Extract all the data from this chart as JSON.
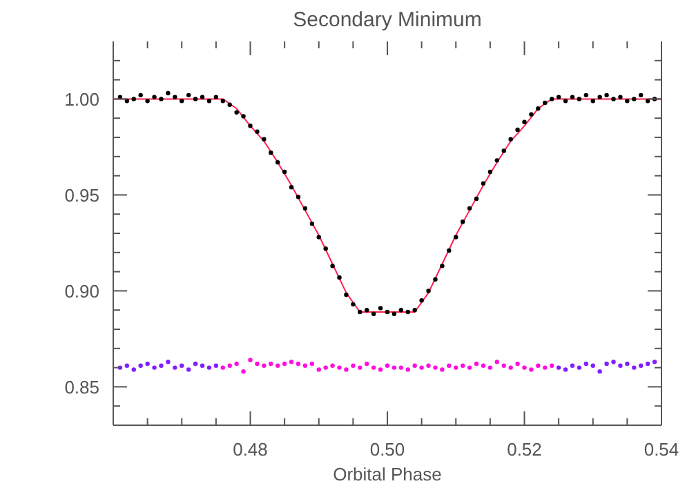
{
  "chart_data": {
    "type": "scatter",
    "title": "Secondary Minimum",
    "xlabel": "Orbital Phase",
    "marker": "circle",
    "xlim": [
      0.46,
      0.54
    ],
    "xticks": [
      {
        "value": 0.465,
        "label": null
      },
      {
        "value": 0.47,
        "label": null
      },
      {
        "value": 0.475,
        "label": null
      },
      {
        "value": 0.48,
        "label": "0.48"
      },
      {
        "value": 0.485,
        "label": null
      },
      {
        "value": 0.49,
        "label": null
      },
      {
        "value": 0.495,
        "label": null
      },
      {
        "value": 0.5,
        "label": "0.50"
      },
      {
        "value": 0.505,
        "label": null
      },
      {
        "value": 0.51,
        "label": null
      },
      {
        "value": 0.515,
        "label": null
      },
      {
        "value": 0.52,
        "label": "0.52"
      },
      {
        "value": 0.525,
        "label": null
      },
      {
        "value": 0.53,
        "label": null
      },
      {
        "value": 0.535,
        "label": null
      },
      {
        "value": 0.54,
        "label": "0.54"
      }
    ],
    "ylim": [
      0.83,
      1.03
    ],
    "yticks": [
      {
        "value": 0.84,
        "label": null
      },
      {
        "value": 0.85,
        "label": "0.85"
      },
      {
        "value": 0.86,
        "label": null
      },
      {
        "value": 0.87,
        "label": null
      },
      {
        "value": 0.88,
        "label": null
      },
      {
        "value": 0.89,
        "label": null
      },
      {
        "value": 0.9,
        "label": "0.90"
      },
      {
        "value": 0.91,
        "label": null
      },
      {
        "value": 0.92,
        "label": null
      },
      {
        "value": 0.93,
        "label": null
      },
      {
        "value": 0.94,
        "label": null
      },
      {
        "value": 0.95,
        "label": "0.95"
      },
      {
        "value": 0.96,
        "label": null
      },
      {
        "value": 0.97,
        "label": null
      },
      {
        "value": 0.98,
        "label": null
      },
      {
        "value": 0.99,
        "label": null
      },
      {
        "value": 1,
        "label": "1.00"
      },
      {
        "value": 1.01,
        "label": null
      },
      {
        "value": 1.02,
        "label": null
      }
    ],
    "series": [
      {
        "color": "#000000",
        "x": [
          0.461,
          0.462,
          0.463,
          0.464,
          0.465,
          0.466,
          0.467,
          0.468,
          0.469,
          0.47,
          0.471,
          0.472,
          0.473,
          0.474,
          0.475,
          0.476,
          0.477,
          0.478,
          0.479,
          0.48,
          0.481,
          0.482,
          0.483,
          0.484,
          0.485,
          0.486,
          0.487,
          0.488,
          0.489,
          0.49,
          0.491,
          0.492,
          0.493,
          0.494,
          0.495,
          0.496,
          0.497,
          0.498,
          0.499,
          0.5,
          0.501,
          0.502,
          0.503,
          0.504,
          0.505,
          0.506,
          0.507,
          0.508,
          0.509,
          0.51,
          0.511,
          0.512,
          0.513,
          0.514,
          0.515,
          0.516,
          0.517,
          0.518,
          0.519,
          0.52,
          0.521,
          0.522,
          0.523,
          0.524,
          0.525,
          0.526,
          0.527,
          0.528,
          0.529,
          0.53,
          0.531,
          0.532,
          0.533,
          0.534,
          0.535,
          0.536,
          0.537,
          0.538,
          0.539
        ],
        "values": [
          1.001,
          0.999,
          1.0,
          1.002,
          0.999,
          1.001,
          1.0,
          1.003,
          1.001,
          0.999,
          1.002,
          1.0,
          1.001,
          0.999,
          1.001,
          0.999,
          0.997,
          0.993,
          0.991,
          0.986,
          0.983,
          0.979,
          0.972,
          0.967,
          0.962,
          0.954,
          0.949,
          0.943,
          0.935,
          0.928,
          0.922,
          0.913,
          0.907,
          0.898,
          0.893,
          0.889,
          0.89,
          0.888,
          0.891,
          0.889,
          0.888,
          0.89,
          0.889,
          0.89,
          0.895,
          0.9,
          0.906,
          0.913,
          0.921,
          0.928,
          0.936,
          0.943,
          0.948,
          0.956,
          0.962,
          0.968,
          0.973,
          0.979,
          0.984,
          0.988,
          0.992,
          0.995,
          0.998,
          1.0,
          1.001,
          0.999,
          1.001,
          1.0,
          1.002,
          0.999,
          1.001,
          1.002,
          1.0,
          1.001,
          0.999,
          1.0,
          1.002,
          0.999,
          1.0
        ]
      },
      {
        "type": "line",
        "marker": "none",
        "color": "#ff2050",
        "x": [
          0.46,
          0.476,
          0.478,
          0.48,
          0.482,
          0.484,
          0.486,
          0.488,
          0.49,
          0.492,
          0.494,
          0.496,
          0.504,
          0.506,
          0.508,
          0.51,
          0.512,
          0.514,
          0.516,
          0.518,
          0.52,
          0.522,
          0.524,
          0.54
        ],
        "values": [
          1.0,
          1.0,
          0.995,
          0.986,
          0.978,
          0.967,
          0.955,
          0.942,
          0.929,
          0.914,
          0.899,
          0.889,
          0.889,
          0.899,
          0.914,
          0.929,
          0.942,
          0.955,
          0.967,
          0.978,
          0.986,
          0.995,
          1.0,
          1.0
        ]
      },
      {
        "color": "#8020ff",
        "x": [
          0.461,
          0.462,
          0.463,
          0.464,
          0.465,
          0.466,
          0.467,
          0.468,
          0.469,
          0.47,
          0.471,
          0.472,
          0.473,
          0.474,
          0.475,
          0.525,
          0.526,
          0.527,
          0.528,
          0.529,
          0.53,
          0.531,
          0.532,
          0.533,
          0.534,
          0.535,
          0.536,
          0.537,
          0.538,
          0.539
        ],
        "values": [
          0.86,
          0.861,
          0.859,
          0.861,
          0.862,
          0.86,
          0.861,
          0.863,
          0.86,
          0.861,
          0.859,
          0.862,
          0.861,
          0.86,
          0.861,
          0.86,
          0.859,
          0.861,
          0.86,
          0.862,
          0.861,
          0.858,
          0.862,
          0.863,
          0.861,
          0.862,
          0.86,
          0.861,
          0.862,
          0.863
        ]
      },
      {
        "color": "#ff10e0",
        "x": [
          0.476,
          0.477,
          0.478,
          0.479,
          0.48,
          0.481,
          0.482,
          0.483,
          0.484,
          0.485,
          0.486,
          0.487,
          0.488,
          0.489,
          0.49,
          0.491,
          0.492,
          0.493,
          0.494,
          0.495,
          0.496,
          0.497,
          0.498,
          0.499,
          0.5,
          0.501,
          0.502,
          0.503,
          0.504,
          0.505,
          0.506,
          0.507,
          0.508,
          0.509,
          0.51,
          0.511,
          0.512,
          0.513,
          0.514,
          0.515,
          0.516,
          0.517,
          0.518,
          0.519,
          0.52,
          0.521,
          0.522,
          0.523,
          0.524
        ],
        "values": [
          0.86,
          0.861,
          0.862,
          0.858,
          0.864,
          0.862,
          0.861,
          0.862,
          0.861,
          0.862,
          0.863,
          0.862,
          0.861,
          0.862,
          0.859,
          0.86,
          0.861,
          0.86,
          0.859,
          0.861,
          0.86,
          0.862,
          0.86,
          0.859,
          0.861,
          0.86,
          0.86,
          0.859,
          0.861,
          0.86,
          0.861,
          0.86,
          0.859,
          0.861,
          0.86,
          0.861,
          0.86,
          0.862,
          0.861,
          0.86,
          0.863,
          0.861,
          0.86,
          0.862,
          0.86,
          0.859,
          0.861,
          0.86,
          0.861
        ]
      }
    ]
  }
}
